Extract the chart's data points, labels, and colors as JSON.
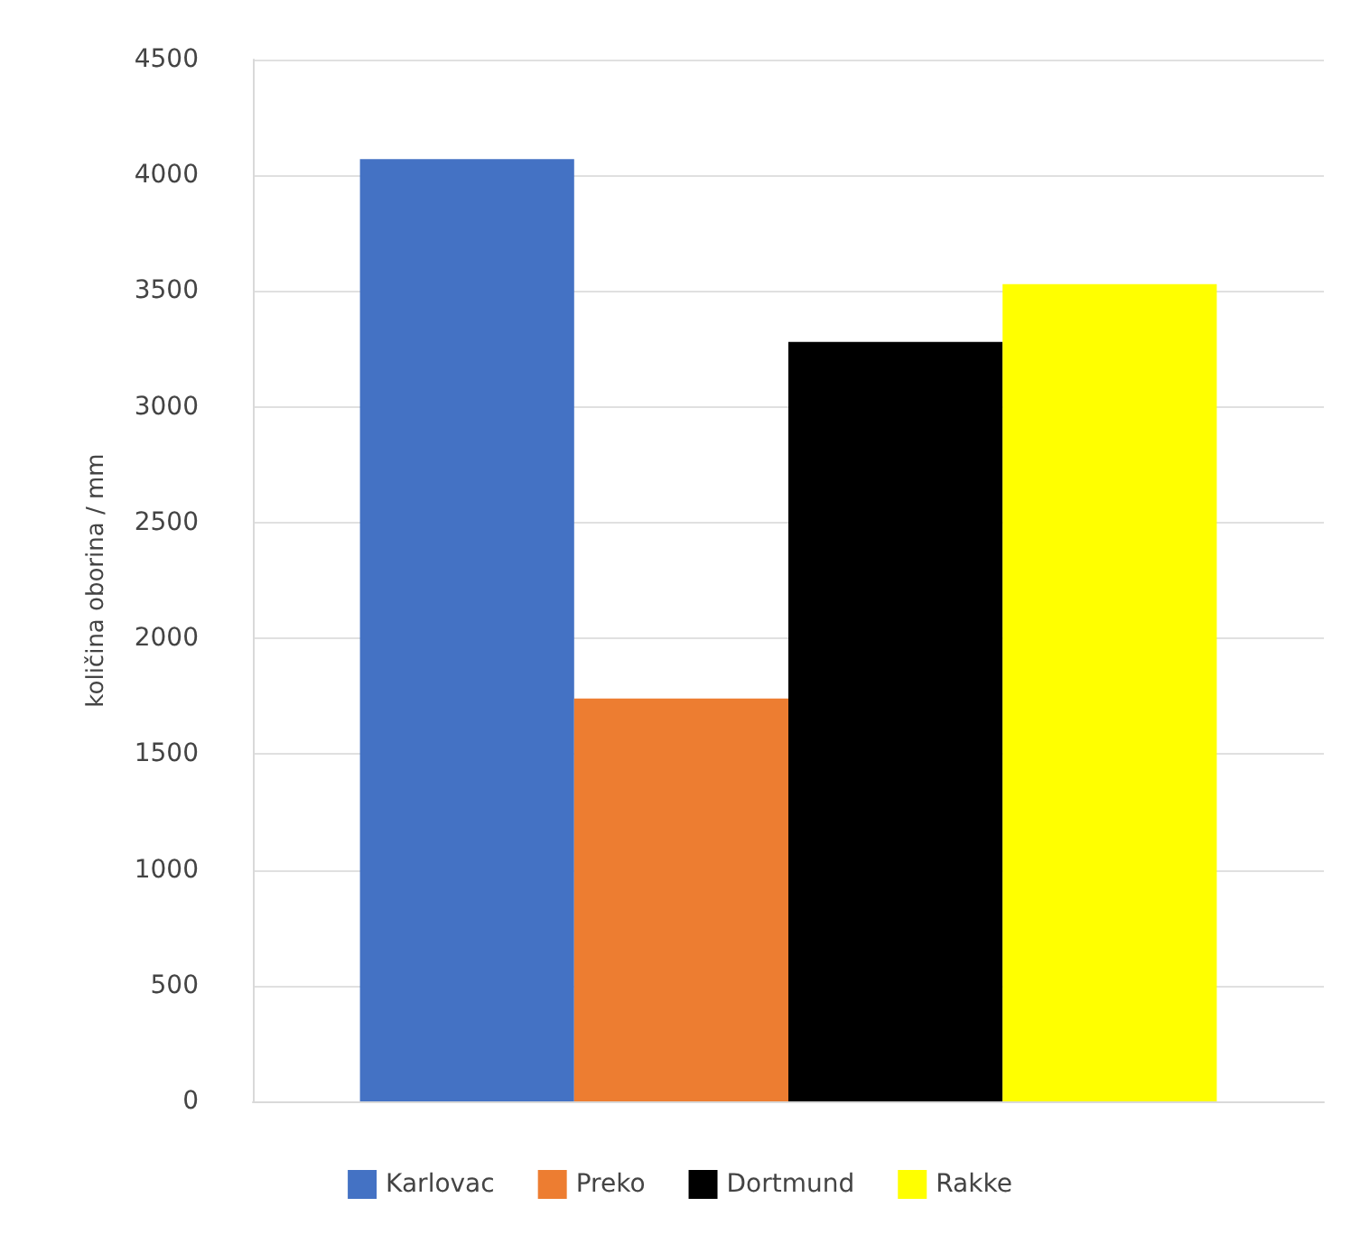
{
  "chart_data": {
    "type": "bar",
    "ylabel": "količina oborina / mm",
    "categories": [
      null
    ],
    "series": [
      {
        "name": "Karlovac",
        "color": "#4472c4",
        "values": [
          4070
        ]
      },
      {
        "name": "Preko",
        "color": "#ed7d31",
        "values": [
          1740
        ]
      },
      {
        "name": "Dortmund",
        "color": "#000000",
        "values": [
          3280
        ]
      },
      {
        "name": "Rakke",
        "color": "#ffff00",
        "values": [
          3530
        ]
      }
    ],
    "ylim": [
      0,
      4500
    ],
    "yticks": [
      0,
      500,
      1000,
      1500,
      2000,
      2500,
      3000,
      3500,
      4000,
      4500
    ],
    "grid": "y",
    "legend": "bottom"
  }
}
